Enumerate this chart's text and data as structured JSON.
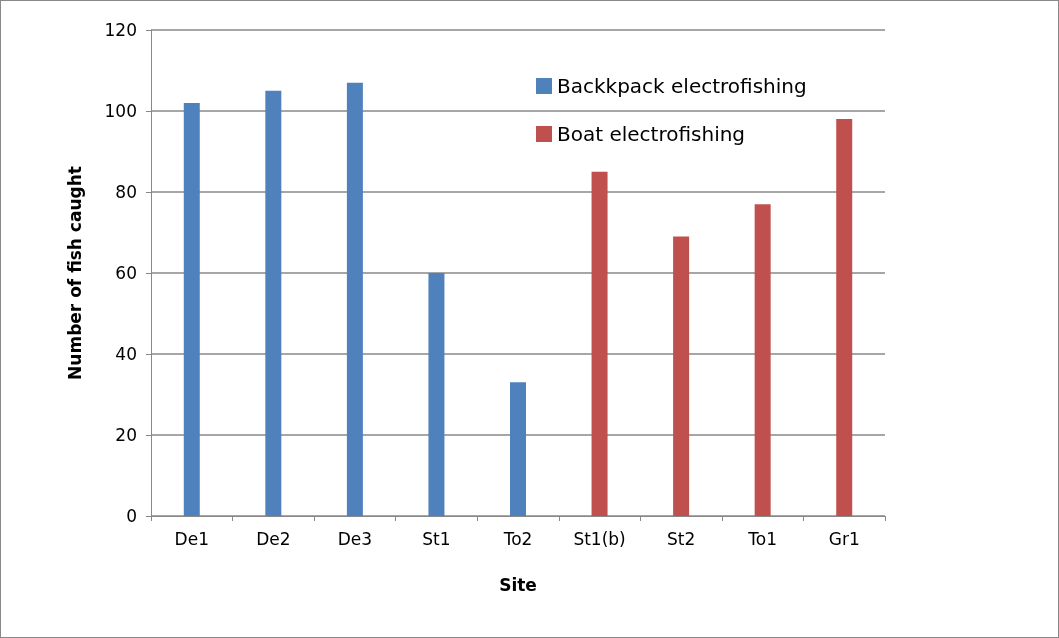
{
  "chart_data": {
    "type": "bar",
    "xlabel": "Site",
    "ylabel": "Number of fish caught",
    "categories": [
      "De1",
      "De2",
      "De3",
      "St1",
      "To2",
      "St1(b)",
      "St2",
      "To1",
      "Gr1"
    ],
    "series": [
      {
        "name": "Backkpack electrofishing",
        "color": "#4f81bd",
        "values": [
          102,
          105,
          107,
          60,
          33,
          null,
          null,
          null,
          null
        ]
      },
      {
        "name": "Boat electrofishing",
        "color": "#c0504d",
        "values": [
          null,
          null,
          null,
          null,
          null,
          85,
          69,
          77,
          98
        ]
      }
    ],
    "stacked": true,
    "ylim": [
      0,
      120
    ],
    "yticks": [
      0,
      20,
      40,
      60,
      80,
      100,
      120
    ],
    "grid": "y",
    "legend": "top right"
  }
}
